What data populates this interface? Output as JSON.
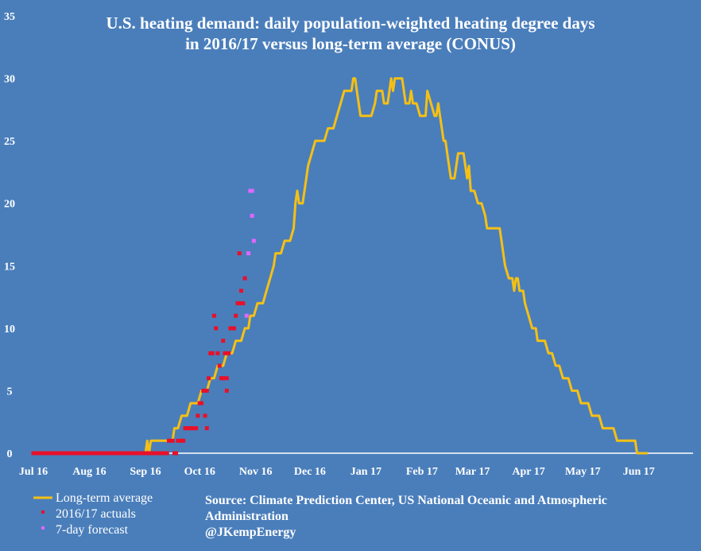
{
  "chart_data": {
    "type": "line",
    "title_lines": [
      "U.S. heating demand: daily population-weighted heating degree days",
      "in 2016/17 versus long-term average (CONUS)"
    ],
    "xlabel": "",
    "ylabel": "",
    "ylim": [
      0,
      35
    ],
    "yticks": [
      0,
      5,
      10,
      15,
      20,
      25,
      30,
      35
    ],
    "xlim": [
      0,
      365
    ],
    "categories": [
      "Jul 16",
      "Aug 16",
      "Sep 16",
      "Oct 16",
      "Nov 16",
      "Dec 16",
      "Jan 17",
      "Feb 17",
      "Mar 17",
      "Apr 17",
      "May 17",
      "Jun 17"
    ],
    "category_days": [
      0,
      31,
      62,
      92,
      123,
      153,
      184,
      215,
      243,
      274,
      304,
      335
    ],
    "grid": false,
    "legend_position": "bottom-left",
    "colors": {
      "average": "#f5c014",
      "actuals": "#e8102a",
      "forecast": "#e066ff",
      "axis": "#ffffff"
    },
    "series": [
      {
        "name": "Long-term average",
        "style": "line",
        "points": [
          [
            0,
            0
          ],
          [
            62,
            0
          ],
          [
            63,
            1
          ],
          [
            64,
            0
          ],
          [
            65,
            1
          ],
          [
            77,
            1
          ],
          [
            78,
            2
          ],
          [
            80,
            2
          ],
          [
            82,
            3
          ],
          [
            85,
            3
          ],
          [
            87,
            4
          ],
          [
            91,
            4
          ],
          [
            93,
            5
          ],
          [
            96,
            5
          ],
          [
            98,
            6
          ],
          [
            100,
            6
          ],
          [
            102,
            7
          ],
          [
            105,
            7
          ],
          [
            107,
            8
          ],
          [
            110,
            8
          ],
          [
            112,
            9
          ],
          [
            115,
            9
          ],
          [
            117,
            10
          ],
          [
            119,
            10
          ],
          [
            120,
            11
          ],
          [
            122,
            11
          ],
          [
            124,
            12
          ],
          [
            127,
            12
          ],
          [
            129,
            13
          ],
          [
            131,
            14
          ],
          [
            133,
            15
          ],
          [
            134,
            16
          ],
          [
            137,
            16
          ],
          [
            139,
            17
          ],
          [
            142,
            17
          ],
          [
            144,
            18
          ],
          [
            145,
            20
          ],
          [
            146,
            21
          ],
          [
            147,
            20
          ],
          [
            149,
            20
          ],
          [
            150,
            21
          ],
          [
            151,
            22
          ],
          [
            152,
            23
          ],
          [
            154,
            24
          ],
          [
            156,
            25
          ],
          [
            161,
            25
          ],
          [
            163,
            26
          ],
          [
            166,
            26
          ],
          [
            168,
            27
          ],
          [
            170,
            28
          ],
          [
            172,
            29
          ],
          [
            176,
            29
          ],
          [
            177,
            30
          ],
          [
            178,
            30
          ],
          [
            179,
            29
          ],
          [
            180,
            28
          ],
          [
            181,
            27
          ],
          [
            187,
            27
          ],
          [
            189,
            28
          ],
          [
            190,
            29
          ],
          [
            193,
            29
          ],
          [
            194,
            28
          ],
          [
            196,
            28
          ],
          [
            197,
            29
          ],
          [
            198,
            30
          ],
          [
            199,
            29
          ],
          [
            200,
            30
          ],
          [
            204,
            30
          ],
          [
            205,
            29
          ],
          [
            206,
            28
          ],
          [
            208,
            28
          ],
          [
            209,
            29
          ],
          [
            210,
            28
          ],
          [
            212,
            28
          ],
          [
            214,
            27
          ],
          [
            217,
            27
          ],
          [
            218,
            29
          ],
          [
            220,
            28
          ],
          [
            222,
            27
          ],
          [
            223,
            27
          ],
          [
            224,
            28
          ],
          [
            225,
            27
          ],
          [
            226,
            26
          ],
          [
            227,
            25
          ],
          [
            228,
            25
          ],
          [
            229,
            24
          ],
          [
            230,
            23
          ],
          [
            231,
            22
          ],
          [
            233,
            22
          ],
          [
            234,
            23
          ],
          [
            235,
            24
          ],
          [
            238,
            24
          ],
          [
            239,
            23
          ],
          [
            240,
            22
          ],
          [
            241,
            23
          ],
          [
            242,
            21
          ],
          [
            244,
            21
          ],
          [
            246,
            20
          ],
          [
            248,
            20
          ],
          [
            250,
            19
          ],
          [
            251,
            18
          ],
          [
            258,
            18
          ],
          [
            259,
            17
          ],
          [
            260,
            16
          ],
          [
            261,
            15
          ],
          [
            263,
            14
          ],
          [
            265,
            14
          ],
          [
            266,
            13
          ],
          [
            267,
            14
          ],
          [
            268,
            14
          ],
          [
            269,
            13
          ],
          [
            271,
            13
          ],
          [
            272,
            12
          ],
          [
            274,
            11
          ],
          [
            276,
            10
          ],
          [
            278,
            10
          ],
          [
            279,
            9
          ],
          [
            283,
            9
          ],
          [
            285,
            8
          ],
          [
            287,
            8
          ],
          [
            289,
            7
          ],
          [
            291,
            7
          ],
          [
            293,
            6
          ],
          [
            296,
            6
          ],
          [
            298,
            5
          ],
          [
            301,
            5
          ],
          [
            303,
            4
          ],
          [
            307,
            4
          ],
          [
            309,
            3
          ],
          [
            313,
            3
          ],
          [
            315,
            2
          ],
          [
            321,
            2
          ],
          [
            323,
            1
          ],
          [
            333,
            1
          ],
          [
            334,
            0
          ],
          [
            340,
            0
          ]
        ]
      },
      {
        "name": "2016/17 actuals",
        "style": "markers",
        "points": [
          [
            0,
            0
          ],
          [
            2,
            0
          ],
          [
            4,
            0
          ],
          [
            6,
            0
          ],
          [
            8,
            0
          ],
          [
            10,
            0
          ],
          [
            12,
            0
          ],
          [
            14,
            0
          ],
          [
            16,
            0
          ],
          [
            18,
            0
          ],
          [
            20,
            0
          ],
          [
            22,
            0
          ],
          [
            24,
            0
          ],
          [
            26,
            0
          ],
          [
            28,
            0
          ],
          [
            30,
            0
          ],
          [
            32,
            0
          ],
          [
            34,
            0
          ],
          [
            36,
            0
          ],
          [
            38,
            0
          ],
          [
            40,
            0
          ],
          [
            42,
            0
          ],
          [
            44,
            0
          ],
          [
            46,
            0
          ],
          [
            48,
            0
          ],
          [
            50,
            0
          ],
          [
            52,
            0
          ],
          [
            54,
            0
          ],
          [
            56,
            0
          ],
          [
            58,
            0
          ],
          [
            60,
            0
          ],
          [
            62,
            0
          ],
          [
            64,
            0
          ],
          [
            66,
            0
          ],
          [
            68,
            0
          ],
          [
            70,
            0
          ],
          [
            72,
            0
          ],
          [
            74,
            0
          ],
          [
            75,
            1
          ],
          [
            77,
            1
          ],
          [
            78,
            0
          ],
          [
            79,
            0
          ],
          [
            80,
            1
          ],
          [
            82,
            1
          ],
          [
            83,
            1
          ],
          [
            84,
            2
          ],
          [
            85,
            2
          ],
          [
            86,
            2
          ],
          [
            87,
            2
          ],
          [
            88,
            2
          ],
          [
            89,
            2
          ],
          [
            90,
            2
          ],
          [
            91,
            3
          ],
          [
            92,
            4
          ],
          [
            93,
            4
          ],
          [
            94,
            5
          ],
          [
            95,
            3
          ],
          [
            96,
            2
          ],
          [
            96,
            5
          ],
          [
            97,
            6
          ],
          [
            98,
            8
          ],
          [
            99,
            8
          ],
          [
            100,
            11
          ],
          [
            101,
            10
          ],
          [
            102,
            8
          ],
          [
            103,
            7
          ],
          [
            104,
            6
          ],
          [
            105,
            6
          ],
          [
            105,
            9
          ],
          [
            106,
            8
          ],
          [
            107,
            6
          ],
          [
            107,
            5
          ],
          [
            108,
            8
          ],
          [
            109,
            10
          ],
          [
            110,
            10
          ],
          [
            111,
            10
          ],
          [
            112,
            11
          ],
          [
            113,
            12
          ],
          [
            114,
            12
          ],
          [
            114,
            16
          ],
          [
            115,
            13
          ],
          [
            116,
            12
          ],
          [
            117,
            14
          ]
        ]
      },
      {
        "name": "7-day forecast",
        "style": "markers",
        "points": [
          [
            118,
            11
          ],
          [
            119,
            16
          ],
          [
            120,
            21
          ],
          [
            121,
            21
          ],
          [
            121,
            19
          ],
          [
            122,
            17
          ]
        ]
      }
    ],
    "source_lines": [
      "Source: Climate Prediction Center, US National Oceanic and Atmospheric",
      "Administration",
      "@JKempEnergy"
    ]
  }
}
